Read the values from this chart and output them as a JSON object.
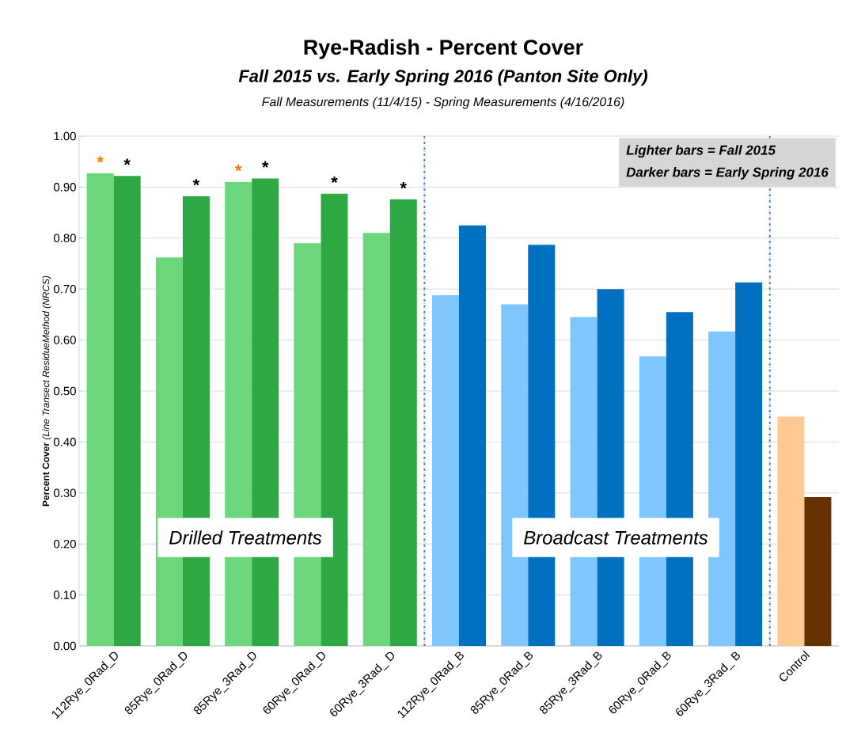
{
  "chart_data": {
    "type": "bar",
    "title": "Rye-Radish - Percent Cover",
    "subtitle": "Fall 2015 vs. Early Spring 2016 (Panton Site Only)",
    "annotations": [
      "Fall Measurements (11/4/15)  -  Spring Measurements (4/16/2016)",
      "Lighter bars = Fall 2015",
      "Darker bars = Early Spring 2016",
      "Drilled Treatments",
      "Broadcast Treatments"
    ],
    "ylabel": "**Percent Cover** *(Line Transect ResidueMethod (NRCS)*",
    "categories": [
      "112Rye_0Rad_D",
      "85Rye_0Rad_D",
      "85Rye_3Rad_D",
      "60Rye_0Rad_D",
      "60Rye_3Rad_ D",
      "112Rye_0Rad_B",
      "85Rye_0Rad_B",
      "85Rye_3Rad_B",
      "60Rye_0Rad_B",
      "60Rye_3Rad_ B",
      "Control"
    ],
    "series": [
      {
        "values": [
          0.927,
          0.762,
          0.91,
          0.79,
          0.81,
          0.688,
          0.67,
          0.645,
          0.568,
          0.617,
          0.45
        ],
        "colors": [
          "#6cd67c",
          "#6cd67c",
          "#6cd67c",
          "#6cd67c",
          "#6cd67c",
          "#7fc6ff",
          "#7fc6ff",
          "#7fc6ff",
          "#7fc6ff",
          "#7fc6ff",
          "#ffc993"
        ],
        "value_labels": [
          "*",
          null,
          "*",
          null,
          null,
          null,
          null,
          null,
          null,
          null,
          null
        ]
      },
      {
        "values": [
          0.922,
          0.882,
          0.917,
          0.887,
          0.876,
          0.825,
          0.787,
          0.7,
          0.655,
          0.713,
          0.292
        ],
        "colors": [
          "#2ea843",
          "#2ea843",
          "#2ea843",
          "#2ea843",
          "#2ea843",
          "#0070c0",
          "#0070c0",
          "#0070c0",
          "#0070c0",
          "#0070c0",
          "#663300"
        ],
        "value_labels": [
          "*",
          "*",
          "*",
          "*",
          "*",
          null,
          null,
          null,
          null,
          null,
          null
        ]
      }
    ],
    "ylim": [
      0,
      1.0
    ],
    "yticks": [
      {
        "value": 0,
        "label": "0.00"
      },
      {
        "value": 0.1,
        "label": "0.10"
      },
      {
        "value": 0.2,
        "label": "0.20"
      },
      {
        "value": 0.3,
        "label": "0.30"
      },
      {
        "value": 0.4,
        "label": "0.40"
      },
      {
        "value": 0.5,
        "label": "0.50"
      },
      {
        "value": 0.6,
        "label": "0.60"
      },
      {
        "value": 0.7,
        "label": "0.70"
      },
      {
        "value": 0.8,
        "label": "0.80"
      },
      {
        "value": 0.9,
        "label": "0.90"
      },
      {
        "value": 1.0,
        "label": "1.00"
      }
    ],
    "grid": "y"
  }
}
